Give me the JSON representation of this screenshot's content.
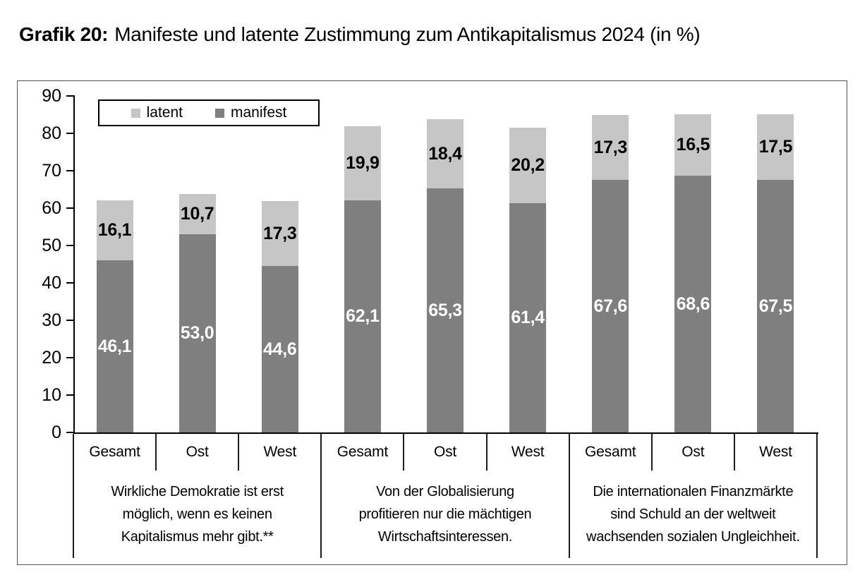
{
  "title": {
    "prefix": "Grafik 20:",
    "text": "Manifeste und latente Zustimmung zum Antikapitalismus 2024 (in %)"
  },
  "legend": {
    "items": [
      {
        "name": "latent",
        "label": "latent",
        "color": "#c6c6c6"
      },
      {
        "name": "manifest",
        "label": "manifest",
        "color": "#7f7f7f"
      }
    ]
  },
  "chart_data": {
    "type": "bar",
    "stacked": true,
    "unit": "%",
    "ylim": [
      0,
      90
    ],
    "yticks": [
      0,
      10,
      20,
      30,
      40,
      50,
      60,
      70,
      80,
      90
    ],
    "grid": false,
    "legend_position": "top-left-inside",
    "series_order_bottom_to_top": [
      "manifest",
      "latent"
    ],
    "colors": {
      "manifest": "#7f7f7f",
      "latent": "#c6c6c6",
      "manifest_label_text": "#ffffff",
      "latent_label_text": "#000000",
      "axis": "#000000"
    },
    "groups": [
      {
        "statement_lines": [
          "Wirkliche Demokratie ist erst",
          "möglich, wenn es keinen",
          "Kapitalismus mehr gibt.**"
        ],
        "bars": [
          {
            "category": "Gesamt",
            "manifest": 46.1,
            "latent": 16.1,
            "manifest_label": "46,1",
            "latent_label": "16,1"
          },
          {
            "category": "Ost",
            "manifest": 53.0,
            "latent": 10.7,
            "manifest_label": "53,0",
            "latent_label": "10,7"
          },
          {
            "category": "West",
            "manifest": 44.6,
            "latent": 17.3,
            "manifest_label": "44,6",
            "latent_label": "17,3"
          }
        ]
      },
      {
        "statement_lines": [
          "Von der Globalisierung",
          "profitieren nur die mächtigen",
          "Wirtschaftsinteressen."
        ],
        "bars": [
          {
            "category": "Gesamt",
            "manifest": 62.1,
            "latent": 19.9,
            "manifest_label": "62,1",
            "latent_label": "19,9"
          },
          {
            "category": "Ost",
            "manifest": 65.3,
            "latent": 18.4,
            "manifest_label": "65,3",
            "latent_label": "18,4"
          },
          {
            "category": "West",
            "manifest": 61.4,
            "latent": 20.2,
            "manifest_label": "61,4",
            "latent_label": "20,2"
          }
        ]
      },
      {
        "statement_lines": [
          "Die internationalen Finanzmärkte",
          "sind Schuld an der weltweit",
          "wachsenden sozialen Ungleichheit."
        ],
        "bars": [
          {
            "category": "Gesamt",
            "manifest": 67.6,
            "latent": 17.3,
            "manifest_label": "67,6",
            "latent_label": "17,3"
          },
          {
            "category": "Ost",
            "manifest": 68.6,
            "latent": 16.5,
            "manifest_label": "68,6",
            "latent_label": "16,5"
          },
          {
            "category": "West",
            "manifest": 67.5,
            "latent": 17.5,
            "manifest_label": "67,5",
            "latent_label": "17,5"
          }
        ]
      }
    ]
  }
}
